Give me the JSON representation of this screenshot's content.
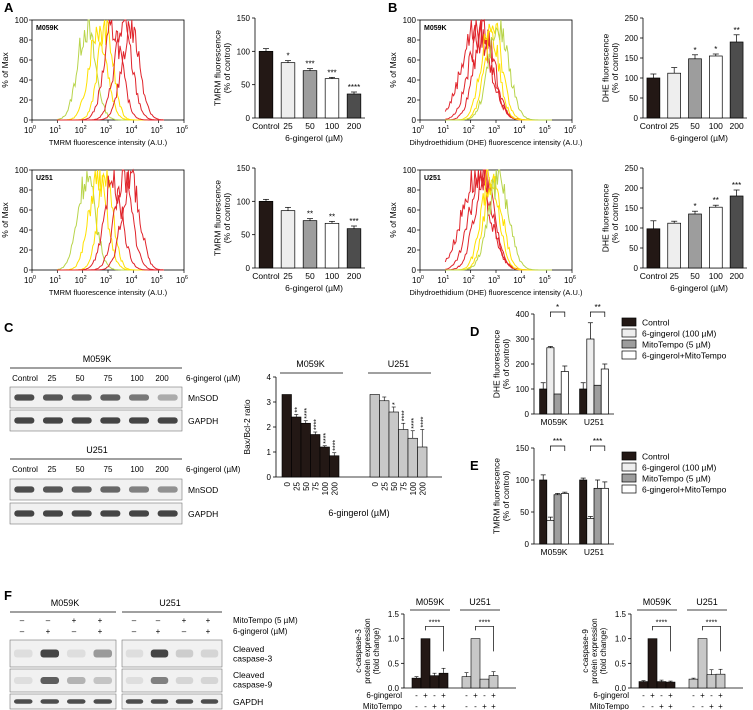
{
  "panels": {
    "A": "A",
    "B": "B",
    "C": "C",
    "D": "D",
    "E": "E",
    "F": "F"
  },
  "colors": {
    "dark": "#231815",
    "light": "#eeeeee",
    "mid": "#9d9d9d",
    "white": "#ffffff",
    "darkgray": "#4d4d4d",
    "red": "#e0242b",
    "yellow": "#ffe100",
    "green": "#b8d44a",
    "grayfill": "#c8c8c8"
  },
  "histograms": [
    {
      "id": "A-M059K",
      "cell": "M059K",
      "ylabel": "% of Max",
      "xlabel": "TMRM fluorescence intensity (A.U.)",
      "yticks": [
        "0",
        "20",
        "40",
        "60",
        "80",
        "100"
      ],
      "xticks": [
        "0",
        "1",
        "2",
        "3",
        "4",
        "5",
        "6"
      ],
      "xbase": "10"
    },
    {
      "id": "A-U251",
      "cell": "U251",
      "ylabel": "% of Max",
      "xlabel": "TMRM fluorescence intensity (A.U.)",
      "yticks": [
        "0",
        "20",
        "40",
        "60",
        "80",
        "100"
      ],
      "xticks": [
        "0",
        "1",
        "2",
        "3",
        "4",
        "5",
        "6"
      ],
      "xbase": "10"
    },
    {
      "id": "B-M059K",
      "cell": "M059K",
      "ylabel": "% of Max",
      "xlabel": "Dihydroethidium (DHE) fluorescence intensity (A.U.)",
      "yticks": [
        "0",
        "20",
        "40",
        "60",
        "80",
        "100"
      ],
      "xticks": [
        "0",
        "1",
        "2",
        "3",
        "4",
        "5",
        "6"
      ],
      "xbase": "10"
    },
    {
      "id": "B-U251",
      "cell": "U251",
      "ylabel": "% of Max",
      "xlabel": "Dihydroethidium (DHE) fluorescence intensity (A.U.)",
      "yticks": [
        "0",
        "20",
        "40",
        "60",
        "80",
        "100"
      ],
      "xticks": [
        "0",
        "1",
        "2",
        "3",
        "4",
        "5",
        "6"
      ],
      "xbase": "10"
    }
  ],
  "chart_data": [
    {
      "id": "A-top-bar",
      "type": "bar",
      "title": "",
      "ylabel": "TMRM fluorescence\n(% of control)",
      "xlabel": "6-gingerol (µM)",
      "categories": [
        "Control",
        "25",
        "50",
        "100",
        "200"
      ],
      "values": [
        100,
        83,
        71,
        59,
        36
      ],
      "errors": [
        4,
        3,
        3,
        2,
        3
      ],
      "sig": [
        "",
        "*",
        "***",
        "***",
        "****"
      ],
      "ylim": [
        0,
        150
      ],
      "yticks": [
        0,
        50,
        100,
        150
      ],
      "fills": [
        "dark",
        "light",
        "mid",
        "white",
        "darkgray"
      ]
    },
    {
      "id": "A-bottom-bar",
      "type": "bar",
      "title": "",
      "ylabel": "TMRM fluorescence\n(% of control)",
      "xlabel": "6-gingerol (µM)",
      "categories": [
        "Control",
        "25",
        "50",
        "100",
        "200"
      ],
      "values": [
        100,
        86,
        71,
        67,
        59
      ],
      "errors": [
        3,
        5,
        3,
        3,
        4
      ],
      "sig": [
        "",
        "",
        "**",
        "**",
        "***"
      ],
      "ylim": [
        0,
        150
      ],
      "yticks": [
        0,
        50,
        100,
        150
      ],
      "fills": [
        "dark",
        "light",
        "mid",
        "white",
        "darkgray"
      ]
    },
    {
      "id": "B-top-bar",
      "type": "bar",
      "title": "",
      "ylabel": "DHE fluorescence\n(% of control)",
      "xlabel": "6-gingerol (µM)",
      "categories": [
        "Control",
        "25",
        "50",
        "100",
        "200"
      ],
      "values": [
        100,
        112,
        148,
        155,
        190
      ],
      "errors": [
        10,
        14,
        10,
        5,
        18
      ],
      "sig": [
        "",
        "",
        "*",
        "*",
        "**"
      ],
      "ylim": [
        0,
        250
      ],
      "yticks": [
        0,
        50,
        100,
        150,
        200,
        250
      ],
      "fills": [
        "dark",
        "light",
        "mid",
        "white",
        "darkgray"
      ]
    },
    {
      "id": "B-bottom-bar",
      "type": "bar",
      "title": "",
      "ylabel": "DHE fluorescence\n(% of control)",
      "xlabel": "6-gingerol (µM)",
      "categories": [
        "Control",
        "25",
        "50",
        "100",
        "200"
      ],
      "values": [
        98,
        112,
        135,
        152,
        180
      ],
      "errors": [
        20,
        5,
        7,
        5,
        15
      ],
      "sig": [
        "",
        "",
        "*",
        "**",
        "***"
      ],
      "ylim": [
        0,
        250
      ],
      "yticks": [
        0,
        50,
        100,
        150,
        200,
        250
      ],
      "fills": [
        "dark",
        "light",
        "mid",
        "white",
        "darkgray"
      ]
    },
    {
      "id": "C-bar",
      "type": "bar",
      "title": "",
      "ylabel": "Bax/Bcl-2 ratio",
      "xlabel": "6-gingerol (µM)",
      "groups": [
        "M059K",
        "U251"
      ],
      "categories": [
        "0",
        "25",
        "50",
        "75",
        "100",
        "200"
      ],
      "series": [
        {
          "name": "M059K",
          "values": [
            3.3,
            2.4,
            2.15,
            1.7,
            1.2,
            0.85
          ],
          "errors": [
            0,
            0.1,
            0.1,
            0.1,
            0.05,
            0.12
          ],
          "sig": [
            "",
            "**",
            "****",
            "****",
            "****",
            "****"
          ],
          "fill": "dark"
        },
        {
          "name": "U251",
          "values": [
            3.3,
            3.05,
            2.6,
            1.9,
            1.55,
            1.2
          ],
          "errors": [
            0,
            0.15,
            0.2,
            0.25,
            0.3,
            0.7
          ],
          "sig": [
            "",
            "",
            "*",
            "****",
            "****",
            "****"
          ],
          "fill": "grayfill"
        }
      ],
      "ylim": [
        0,
        4
      ],
      "yticks": [
        0,
        1,
        2,
        3,
        4
      ]
    },
    {
      "id": "D-bar",
      "type": "bar",
      "ylabel": "DHE fluorescence\n(% of control)",
      "groups": [
        "M059K",
        "U251"
      ],
      "series": [
        {
          "name": "Control",
          "values": [
            100,
            100
          ],
          "errors": [
            25,
            25
          ],
          "fill": "dark"
        },
        {
          "name": "6-gingerol (100 µM)",
          "values": [
            265,
            300
          ],
          "errors": [
            5,
            65
          ],
          "fill": "light"
        },
        {
          "name": "MitoTempo (5 µM)",
          "values": [
            80,
            115
          ],
          "errors": [
            0,
            0
          ],
          "fill": "mid"
        },
        {
          "name": "6-gingerol+MitoTempo",
          "values": [
            170,
            180
          ],
          "errors": [
            22,
            20
          ],
          "fill": "white"
        }
      ],
      "sig": [
        "*",
        "**"
      ],
      "ylim": [
        0,
        400
      ],
      "yticks": [
        0,
        100,
        200,
        300,
        400
      ]
    },
    {
      "id": "E-bar",
      "type": "bar",
      "ylabel": "TMRM fluorescence\n(% of control)",
      "groups": [
        "M059K",
        "U251"
      ],
      "series": [
        {
          "name": "Control",
          "values": [
            100,
            100
          ],
          "errors": [
            8,
            3
          ],
          "fill": "dark"
        },
        {
          "name": "6-gingerol (100 µM)",
          "values": [
            37,
            40
          ],
          "errors": [
            5,
            3
          ],
          "fill": "light"
        },
        {
          "name": "MitoTempo (5 µM)",
          "values": [
            77,
            87
          ],
          "errors": [
            2,
            13
          ],
          "fill": "mid"
        },
        {
          "name": "6-gingerol+MitoTempo",
          "values": [
            79,
            87
          ],
          "errors": [
            2,
            10
          ],
          "fill": "white"
        }
      ],
      "sig": [
        "***",
        "***"
      ],
      "ylim": [
        0,
        150
      ],
      "yticks": [
        0,
        50,
        100,
        150
      ]
    },
    {
      "id": "F-c3-bar",
      "type": "bar",
      "ylabel": "c-caspase-3\nprotein expression\n(fold change)",
      "groups": [
        "M059K",
        "U251"
      ],
      "series": [
        {
          "name": "M059K",
          "values": [
            0.2,
            1.0,
            0.25,
            0.3
          ],
          "errors": [
            0.03,
            0,
            0.05,
            0.1
          ],
          "fill": "dark"
        },
        {
          "name": "U251",
          "values": [
            0.23,
            1.0,
            0.18,
            0.25
          ],
          "errors": [
            0.08,
            0,
            0,
            0.08
          ],
          "fill": "grayfill"
        }
      ],
      "sig": [
        "****",
        "****"
      ],
      "ylim": [
        0,
        1.5
      ],
      "yticks": [
        "0.0",
        "0.5",
        "1.0",
        "1.5"
      ],
      "row1_label": "6-gingerol",
      "row2_label": "MitoTempo",
      "row1": [
        "-",
        "+",
        "-",
        "+"
      ],
      "row2": [
        "-",
        "-",
        "+",
        "+"
      ]
    },
    {
      "id": "F-c9-bar",
      "type": "bar",
      "ylabel": "c-caspase-9\nprotein expression\n(fold change)",
      "groups": [
        "M059K",
        "U251"
      ],
      "series": [
        {
          "name": "M059K",
          "values": [
            0.13,
            1.0,
            0.13,
            0.12
          ],
          "errors": [
            0.02,
            0,
            0.03,
            0.02
          ],
          "fill": "dark"
        },
        {
          "name": "U251",
          "values": [
            0.18,
            1.0,
            0.27,
            0.28
          ],
          "errors": [
            0.02,
            0,
            0.1,
            0.1
          ],
          "fill": "grayfill"
        }
      ],
      "sig": [
        "****",
        "****"
      ],
      "ylim": [
        0,
        1.5
      ],
      "yticks": [
        "0.0",
        "0.5",
        "1.0",
        "1.5"
      ],
      "row1_label": "6-gingerol",
      "row2_label": "MitoTempo",
      "row1": [
        "-",
        "+",
        "-",
        "+"
      ],
      "row2": [
        "-",
        "-",
        "+",
        "+"
      ]
    }
  ],
  "blotC": {
    "header_label": "6-gingerol (µM)",
    "m059k": "M059K",
    "u251": "U251",
    "lanes": [
      "Control",
      "25",
      "50",
      "75",
      "100",
      "200"
    ],
    "bands": [
      "MnSOD",
      "GAPDH"
    ]
  },
  "blotF": {
    "m059k": "M059K",
    "u251": "U251",
    "row1_label": "MitoTempo (5 µM)",
    "row2_label": "6-gingerol (µM)",
    "row1": [
      "–",
      "–",
      "+",
      "+"
    ],
    "row2": [
      "–",
      "+",
      "–",
      "+"
    ],
    "bands": [
      "Cleaved\ncaspase-3",
      "Cleaved\ncaspase-9",
      "GAPDH"
    ]
  }
}
